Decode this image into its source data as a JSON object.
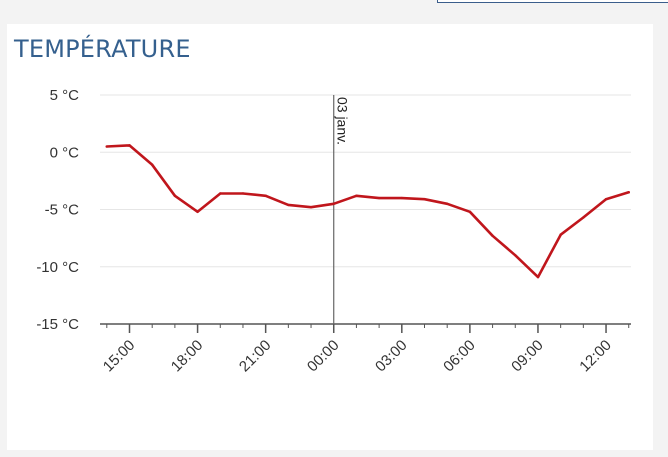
{
  "header": {
    "title": "TEMPÉRATURE"
  },
  "colors": {
    "series": "#c0161c",
    "title": "#35608e",
    "grid": "#e6e6e6",
    "annotation": "#666666"
  },
  "chart_data": {
    "type": "line",
    "title": "TEMPÉRATURE",
    "xlabel": "",
    "ylabel": "",
    "ylim": [
      -15,
      5
    ],
    "y_ticks": [
      5,
      0,
      -5,
      -10,
      -15
    ],
    "y_tick_labels": [
      "5 °C",
      "0 °C",
      "-5 °C",
      "-10 °C",
      "-15 °C"
    ],
    "x_tick_hours": [
      15,
      18,
      21,
      24,
      27,
      30,
      33,
      36
    ],
    "x_tick_labels": [
      "15:00",
      "18:00",
      "21:00",
      "00:00",
      "03:00",
      "06:00",
      "09:00",
      "12:00"
    ],
    "grid": true,
    "annotations": [
      {
        "x_hour": 24,
        "label": "03 janv."
      }
    ],
    "series": [
      {
        "x": [
          14,
          15,
          16,
          17,
          18,
          19,
          20,
          21,
          22,
          23,
          24,
          25,
          26,
          27,
          28,
          29,
          30,
          31,
          32,
          33,
          34,
          35,
          36,
          37
        ],
        "values": [
          0.5,
          0.6,
          -1.1,
          -3.8,
          -5.2,
          -3.6,
          -3.6,
          -3.8,
          -4.6,
          -4.8,
          -4.5,
          -3.8,
          -4.0,
          -4.0,
          -4.1,
          -4.5,
          -5.2,
          -7.3,
          -9.0,
          -10.9,
          -7.2,
          -5.7,
          -4.1,
          -3.5
        ]
      }
    ]
  }
}
